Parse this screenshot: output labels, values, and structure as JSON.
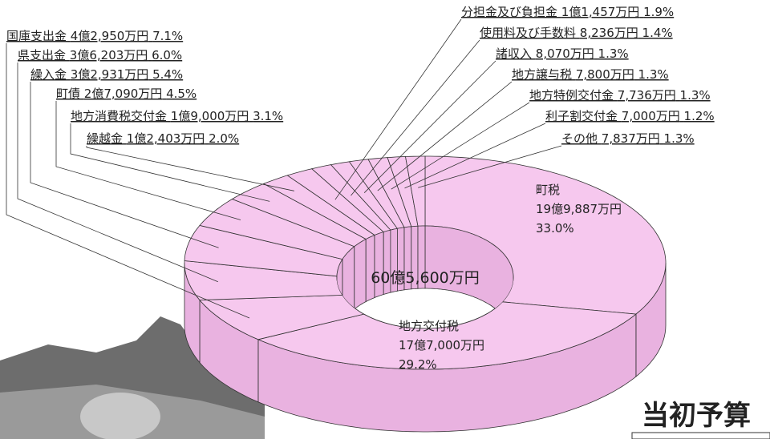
{
  "heading": "当初予算",
  "chart_data": {
    "type": "donut",
    "total_label": "60億5,600万円",
    "categories": [
      "町税",
      "地方交付税",
      "国庫支出金",
      "県支出金",
      "繰入金",
      "町債",
      "地方消費税交付金",
      "繰越金",
      "分担金及び負担金",
      "使用料及び手数料",
      "諸収入",
      "地方譲与税",
      "地方特例交付金",
      "利子割交付金",
      "その他"
    ],
    "amounts": [
      "19億9,887万円",
      "17億7,000万円",
      "4億2,950万円",
      "3億6,203万円",
      "3億2,931万円",
      "2億7,090万円",
      "1億9,000万円",
      "1億2,403万円",
      "1億1,457万円",
      "8,236万円",
      "8,070万円",
      "7,800万円",
      "7,736万円",
      "7,000万円",
      "7,837万円"
    ],
    "values": [
      33.0,
      29.2,
      7.1,
      6.0,
      5.4,
      4.5,
      3.1,
      2.0,
      1.9,
      1.4,
      1.3,
      1.3,
      1.3,
      1.2,
      1.3
    ],
    "value_labels": [
      "33.0%",
      "29.2%",
      "7.1%",
      "6.0%",
      "5.4%",
      "4.5%",
      "3.1%",
      "2.0%",
      "1.9%",
      "1.4%",
      "1.3%",
      "1.3%",
      "1.3%",
      "1.2%",
      "1.3%"
    ],
    "color": "#f6c8ee",
    "side_color": "#e9b2e0"
  }
}
